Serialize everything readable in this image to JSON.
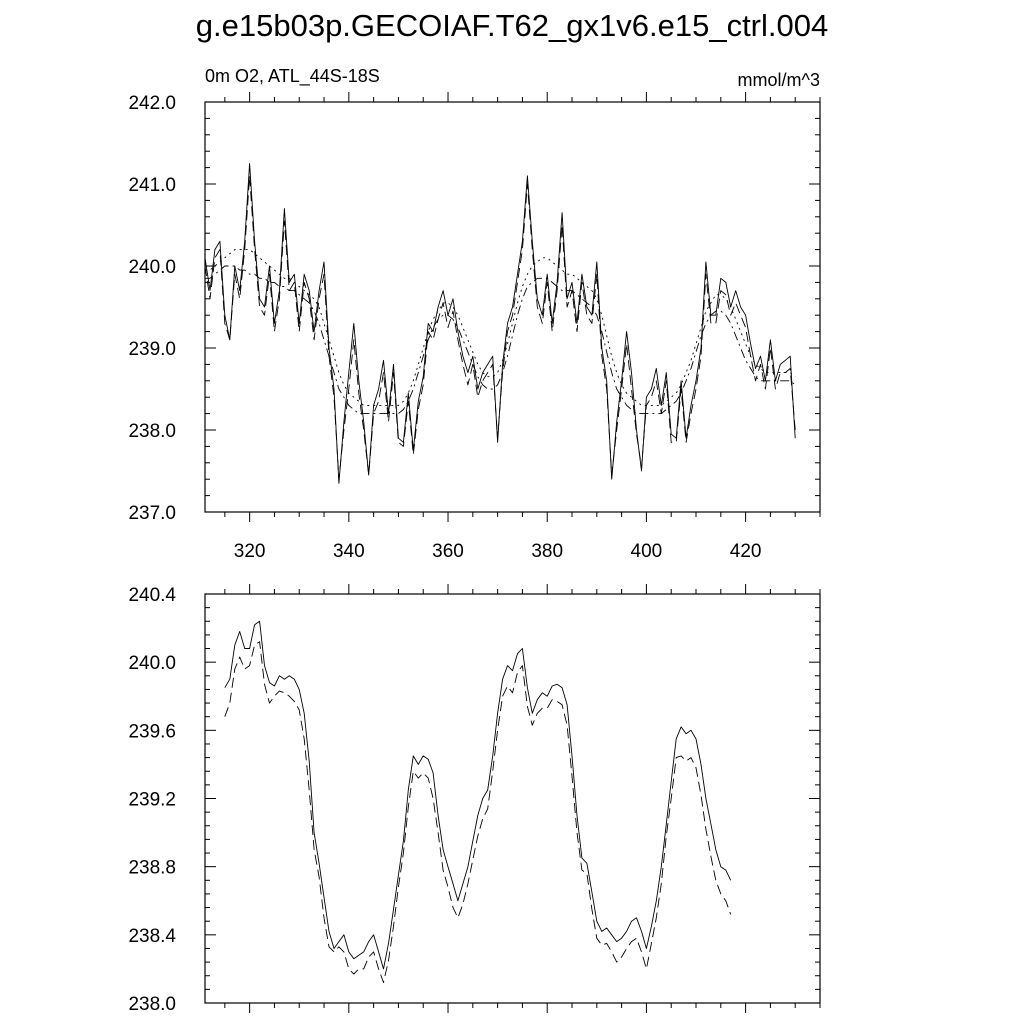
{
  "title": "g.e15b03p.GECOIAF.T62_gx1v6.e15_ctrl.004",
  "subtitle_left": "0m O2, ATL_44S-18S",
  "subtitle_right": "mmol/m^3",
  "chart_data": [
    {
      "type": "line",
      "name": "top-panel",
      "xlim": [
        311,
        435
      ],
      "ylim": [
        237.0,
        242.0
      ],
      "xticks": [
        320,
        340,
        360,
        380,
        400,
        420
      ],
      "xtick_labels": [
        "320",
        "340",
        "360",
        "380",
        "400",
        "420"
      ],
      "yticks": [
        237.0,
        238.0,
        239.0,
        240.0,
        241.0,
        242.0
      ],
      "ytick_labels": [
        "237.0",
        "238.0",
        "239.0",
        "240.0",
        "241.0",
        "242.0"
      ],
      "grid": false,
      "x_start": 311,
      "x_step": 1,
      "series": [
        {
          "style": "solid",
          "values": [
            240.1,
            239.7,
            240.2,
            240.3,
            239.4,
            239.1,
            240.0,
            239.7,
            240.3,
            241.25,
            240.3,
            239.6,
            239.5,
            240.0,
            239.3,
            239.7,
            240.7,
            239.8,
            239.9,
            239.3,
            239.9,
            239.7,
            239.2,
            239.7,
            240.05,
            239.0,
            238.5,
            237.35,
            238.1,
            238.7,
            239.3,
            238.6,
            238.1,
            237.45,
            238.3,
            238.5,
            238.85,
            238.2,
            238.8,
            237.9,
            237.85,
            238.45,
            237.75,
            238.35,
            238.65,
            239.3,
            239.2,
            239.5,
            239.7,
            239.4,
            239.6,
            239.2,
            238.9,
            238.7,
            238.9,
            238.5,
            238.7,
            238.8,
            238.9,
            237.85,
            238.8,
            239.3,
            239.5,
            239.9,
            240.3,
            241.1,
            240.3,
            239.6,
            239.4,
            239.9,
            239.3,
            239.8,
            240.65,
            239.6,
            239.8,
            239.3,
            239.9,
            239.5,
            239.4,
            240.05,
            239.0,
            238.6,
            237.4,
            238.1,
            238.6,
            239.2,
            238.7,
            238.0,
            237.5,
            238.4,
            238.5,
            238.75,
            238.3,
            238.7,
            237.95,
            237.9,
            238.6,
            237.9,
            238.3,
            238.6,
            239.0,
            240.05,
            239.4,
            239.4,
            239.85,
            239.8,
            239.5,
            239.7,
            239.5,
            239.4,
            239.05,
            238.75,
            238.9,
            238.6,
            239.1,
            238.6,
            238.8,
            238.85,
            238.9,
            237.9
          ]
        },
        {
          "style": "dashed",
          "values": [
            240.0,
            239.6,
            240.1,
            240.2,
            239.3,
            239.1,
            239.9,
            239.6,
            240.2,
            241.1,
            240.2,
            239.5,
            239.4,
            239.9,
            239.2,
            239.6,
            240.55,
            239.7,
            239.8,
            239.2,
            239.8,
            239.6,
            239.1,
            239.6,
            239.9,
            238.9,
            238.4,
            237.4,
            238.0,
            238.5,
            239.1,
            238.45,
            238.0,
            237.45,
            238.2,
            238.35,
            238.7,
            238.1,
            238.7,
            237.85,
            237.8,
            238.35,
            237.7,
            238.25,
            238.55,
            239.2,
            239.1,
            239.35,
            239.55,
            239.25,
            239.45,
            239.1,
            238.8,
            238.55,
            238.8,
            238.4,
            238.6,
            238.7,
            238.8,
            237.9,
            238.7,
            239.2,
            239.4,
            239.8,
            240.2,
            241.0,
            240.2,
            239.5,
            239.3,
            239.8,
            239.2,
            239.7,
            240.5,
            239.5,
            239.7,
            239.2,
            239.8,
            239.4,
            239.3,
            239.9,
            238.9,
            238.5,
            237.45,
            238.0,
            238.5,
            239.05,
            238.5,
            237.95,
            237.55,
            238.3,
            238.4,
            238.6,
            238.2,
            238.6,
            237.85,
            237.85,
            238.5,
            237.85,
            238.2,
            238.5,
            238.9,
            239.9,
            239.3,
            239.3,
            239.7,
            239.65,
            239.4,
            239.55,
            239.4,
            239.25,
            238.9,
            238.6,
            238.8,
            238.5,
            239.0,
            238.5,
            238.7,
            238.7,
            238.75,
            238.0
          ]
        },
        {
          "style": "dotted",
          "values": [
            239.95,
            239.95,
            240.0,
            240.05,
            240.1,
            240.15,
            240.2,
            240.2,
            240.2,
            240.2,
            240.15,
            240.1,
            240.05,
            240.0,
            239.95,
            239.9,
            239.85,
            239.85,
            239.8,
            239.75,
            239.7,
            239.65,
            239.6,
            239.5,
            239.3,
            239.1,
            238.9,
            238.7,
            238.55,
            238.45,
            238.4,
            238.35,
            238.3,
            238.3,
            238.3,
            238.3,
            238.3,
            238.3,
            238.3,
            238.3,
            238.35,
            238.45,
            238.6,
            238.8,
            239.0,
            239.2,
            239.35,
            239.45,
            239.55,
            239.55,
            239.5,
            239.4,
            239.25,
            239.1,
            238.95,
            238.8,
            238.7,
            238.65,
            238.65,
            238.7,
            238.85,
            239.05,
            239.3,
            239.55,
            239.75,
            239.9,
            240.0,
            240.05,
            240.1,
            240.1,
            240.05,
            240.0,
            239.95,
            239.9,
            239.9,
            239.85,
            239.8,
            239.75,
            239.7,
            239.6,
            239.4,
            239.15,
            238.9,
            238.7,
            238.55,
            238.45,
            238.4,
            238.35,
            238.3,
            238.3,
            238.3,
            238.3,
            238.3,
            238.35,
            238.4,
            238.45,
            238.55,
            238.7,
            238.85,
            239.05,
            239.25,
            239.45,
            239.55,
            239.65,
            239.65,
            239.6,
            239.5,
            239.35,
            239.2,
            239.05,
            238.9,
            238.8,
            238.75,
            238.7,
            238.7,
            238.7,
            238.7,
            238.7,
            238.7,
            238.65
          ]
        },
        {
          "style": "dash-dot",
          "values": [
            239.85,
            239.85,
            239.9,
            239.95,
            240.0,
            240.0,
            240.0,
            239.95,
            239.95,
            239.9,
            239.9,
            239.85,
            239.85,
            239.8,
            239.8,
            239.75,
            239.75,
            239.7,
            239.7,
            239.65,
            239.6,
            239.55,
            239.45,
            239.3,
            239.1,
            238.9,
            238.7,
            238.5,
            238.4,
            238.3,
            238.25,
            238.2,
            238.2,
            238.2,
            238.2,
            238.2,
            238.2,
            238.2,
            238.2,
            238.2,
            238.25,
            238.35,
            238.5,
            238.7,
            238.9,
            239.1,
            239.25,
            239.35,
            239.4,
            239.4,
            239.35,
            239.25,
            239.1,
            238.95,
            238.8,
            238.65,
            238.55,
            238.5,
            238.5,
            238.55,
            238.7,
            238.9,
            239.15,
            239.4,
            239.6,
            239.75,
            239.8,
            239.85,
            239.85,
            239.85,
            239.8,
            239.75,
            239.7,
            239.7,
            239.7,
            239.65,
            239.6,
            239.55,
            239.5,
            239.4,
            239.2,
            238.95,
            238.7,
            238.5,
            238.4,
            238.3,
            238.25,
            238.2,
            238.2,
            238.2,
            238.2,
            238.2,
            238.2,
            238.25,
            238.3,
            238.35,
            238.45,
            238.6,
            238.75,
            238.95,
            239.15,
            239.3,
            239.4,
            239.45,
            239.45,
            239.4,
            239.3,
            239.15,
            239.0,
            238.85,
            238.75,
            238.65,
            238.6,
            238.6,
            238.6,
            238.6,
            238.6,
            238.6,
            238.6,
            238.55
          ]
        }
      ]
    },
    {
      "type": "line",
      "name": "bottom-panel",
      "xlim": [
        311,
        435
      ],
      "ylim": [
        238.0,
        240.4
      ],
      "xticks": [
        320,
        340,
        360,
        380,
        400,
        420
      ],
      "yticks": [
        238.0,
        238.4,
        238.8,
        239.2,
        239.6,
        240.0,
        240.4
      ],
      "ytick_labels": [
        "238.0",
        "238.4",
        "238.8",
        "239.2",
        "239.6",
        "240.0",
        "240.4"
      ],
      "grid": false,
      "x_start": 315,
      "x_step": 1,
      "series": [
        {
          "style": "solid",
          "values": [
            239.85,
            239.9,
            240.1,
            240.18,
            240.08,
            240.08,
            240.22,
            240.24,
            239.98,
            239.88,
            239.86,
            239.92,
            239.9,
            239.92,
            239.9,
            239.84,
            239.7,
            239.42,
            239.0,
            238.82,
            238.62,
            238.42,
            238.32,
            238.36,
            238.4,
            238.3,
            238.26,
            238.28,
            238.3,
            238.36,
            238.4,
            238.3,
            238.2,
            238.35,
            238.55,
            238.75,
            238.95,
            239.25,
            239.45,
            239.4,
            239.45,
            239.43,
            239.35,
            239.1,
            238.9,
            238.8,
            238.7,
            238.6,
            238.7,
            238.8,
            238.95,
            239.1,
            239.2,
            239.25,
            239.45,
            239.7,
            239.9,
            239.98,
            239.95,
            240.05,
            240.08,
            239.85,
            239.7,
            239.78,
            239.82,
            239.8,
            239.86,
            239.87,
            239.85,
            239.75,
            239.45,
            239.1,
            238.85,
            238.82,
            238.65,
            238.48,
            238.42,
            238.44,
            238.4,
            238.36,
            238.38,
            238.42,
            238.48,
            238.5,
            238.42,
            238.32,
            238.45,
            238.6,
            238.8,
            239.05,
            239.3,
            239.55,
            239.62,
            239.58,
            239.6,
            239.55,
            239.4,
            239.2,
            239.05,
            238.9,
            238.8,
            238.78,
            238.72
          ]
        },
        {
          "style": "dashed",
          "values": [
            239.68,
            239.76,
            239.96,
            240.03,
            239.96,
            239.98,
            240.1,
            240.12,
            239.87,
            239.76,
            239.8,
            239.83,
            239.82,
            239.8,
            239.77,
            239.72,
            239.55,
            239.25,
            238.9,
            238.74,
            238.5,
            238.33,
            238.3,
            238.33,
            238.3,
            238.2,
            238.17,
            238.2,
            238.2,
            238.27,
            238.3,
            238.2,
            238.12,
            238.25,
            238.45,
            238.68,
            238.88,
            239.15,
            239.36,
            239.32,
            239.35,
            239.32,
            239.2,
            239.0,
            238.78,
            238.68,
            238.56,
            238.5,
            238.58,
            238.7,
            238.84,
            238.98,
            239.08,
            239.14,
            239.36,
            239.6,
            239.8,
            239.86,
            239.82,
            239.94,
            239.98,
            239.74,
            239.63,
            239.7,
            239.73,
            239.73,
            239.78,
            239.77,
            239.75,
            239.63,
            239.33,
            239.0,
            238.78,
            238.76,
            238.55,
            238.38,
            238.34,
            238.35,
            238.3,
            238.24,
            238.27,
            238.32,
            238.36,
            238.38,
            238.3,
            238.2,
            238.35,
            238.5,
            238.7,
            238.98,
            239.2,
            239.44,
            239.45,
            239.42,
            239.44,
            239.38,
            239.22,
            239.02,
            238.86,
            238.72,
            238.64,
            238.6,
            238.52
          ]
        }
      ]
    }
  ]
}
